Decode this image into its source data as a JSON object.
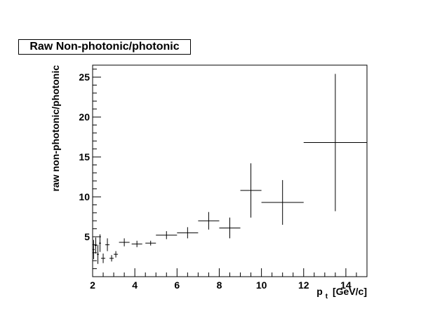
{
  "chart_data": {
    "type": "scatter",
    "title": "Raw Non-photonic/photonic",
    "ylabel": "raw non-photonic/photonic",
    "xlabel_main": "p",
    "xlabel_sub": "t",
    "xlabel_unit": "[GeV/c]",
    "xlim": [
      2,
      15
    ],
    "ylim": [
      0,
      26.5
    ],
    "x_ticks": [
      2,
      4,
      6,
      8,
      10,
      12,
      14
    ],
    "y_ticks": [
      5,
      10,
      15,
      20,
      25
    ],
    "grid": false,
    "series": [
      {
        "points": [
          {
            "x": 2.05,
            "y": 3.4,
            "xerr": 0.05,
            "yerr": 1.2
          },
          {
            "x": 2.15,
            "y": 3.9,
            "xerr": 0.05,
            "yerr": 1.0
          },
          {
            "x": 2.25,
            "y": 2.8,
            "xerr": 0.05,
            "yerr": 1.2
          },
          {
            "x": 2.35,
            "y": 4.2,
            "xerr": 0.05,
            "yerr": 1.1
          },
          {
            "x": 2.5,
            "y": 2.3,
            "xerr": 0.1,
            "yerr": 0.6
          },
          {
            "x": 2.7,
            "y": 4.0,
            "xerr": 0.1,
            "yerr": 0.8
          },
          {
            "x": 2.9,
            "y": 2.3,
            "xerr": 0.1,
            "yerr": 0.4
          },
          {
            "x": 3.1,
            "y": 2.8,
            "xerr": 0.1,
            "yerr": 0.4
          },
          {
            "x": 3.5,
            "y": 4.3,
            "xerr": 0.25,
            "yerr": 0.5
          },
          {
            "x": 4.1,
            "y": 4.1,
            "xerr": 0.25,
            "yerr": 0.4
          },
          {
            "x": 4.75,
            "y": 4.2,
            "xerr": 0.25,
            "yerr": 0.3
          },
          {
            "x": 5.5,
            "y": 5.2,
            "xerr": 0.5,
            "yerr": 0.5
          },
          {
            "x": 6.5,
            "y": 5.5,
            "xerr": 0.5,
            "yerr": 0.7
          },
          {
            "x": 7.5,
            "y": 7.0,
            "xerr": 0.5,
            "yerr": 1.1
          },
          {
            "x": 8.5,
            "y": 6.1,
            "xerr": 0.5,
            "yerr": 1.3
          },
          {
            "x": 9.5,
            "y": 10.8,
            "xerr": 0.5,
            "yerr": 3.4
          },
          {
            "x": 11.0,
            "y": 9.3,
            "xerr": 1.0,
            "yerr": 2.8
          },
          {
            "x": 13.5,
            "y": 16.8,
            "xerr": 1.5,
            "yerr": 8.6
          }
        ]
      }
    ]
  }
}
